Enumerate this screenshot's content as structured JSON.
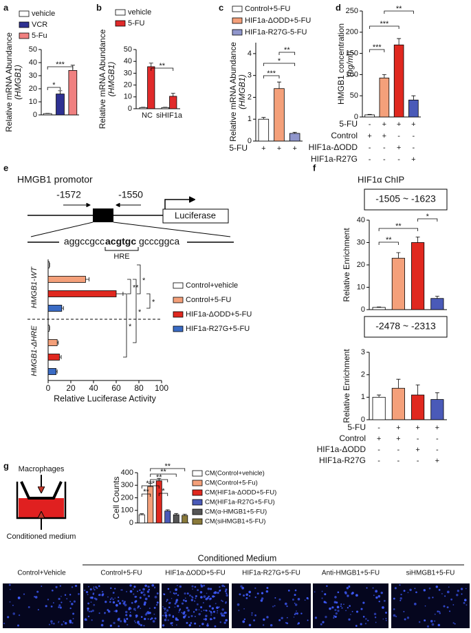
{
  "chart_data": [
    {
      "panel": "a",
      "type": "bar",
      "ylabel": [
        "Relative mRNA Abundance",
        "(HMGB1)"
      ],
      "categories": [
        null,
        null,
        null
      ],
      "series": [
        {
          "name": "vehicle",
          "color": "#ffffff",
          "values": [
            1,
            null,
            null
          ],
          "errors": [
            0.2,
            null,
            null
          ]
        },
        {
          "name": "VCR",
          "color": "#2e3192",
          "values": [
            null,
            16,
            null
          ],
          "errors": [
            null,
            2.5,
            null
          ]
        },
        {
          "name": "5-Fu",
          "color": "#f08080",
          "values": [
            null,
            null,
            34
          ],
          "errors": [
            null,
            null,
            4
          ]
        }
      ],
      "ylim": [
        0,
        50
      ],
      "yticks": [
        0,
        10,
        20,
        30,
        40,
        50
      ],
      "annotations": [
        "*",
        "***"
      ]
    },
    {
      "panel": "b",
      "type": "bar",
      "ylabel": [
        "Relative mRNA Abundance",
        "(HMGB1)"
      ],
      "categories": [
        "NC",
        "siHIF1a"
      ],
      "series": [
        {
          "name": "vehicle",
          "color": "#ffffff",
          "values": [
            1,
            1
          ],
          "errors": [
            0.2,
            0.2
          ]
        },
        {
          "name": "5-FU",
          "color": "#e02a2a",
          "values": [
            35.5,
            10.5
          ],
          "errors": [
            3,
            2.5
          ]
        }
      ],
      "ylim": [
        0,
        50
      ],
      "yticks": [
        0,
        10,
        20,
        30,
        40,
        50
      ],
      "annotations": [
        "**"
      ]
    },
    {
      "panel": "c",
      "type": "bar",
      "ylabel": [
        "Relative mRNA Abundance",
        "(HMGB1)"
      ],
      "categories": [
        null,
        null,
        null
      ],
      "series": [
        {
          "name": "Control+5-FU",
          "color": "#ffffff",
          "values": [
            1,
            null,
            null
          ],
          "errors": [
            0.08,
            null,
            null
          ]
        },
        {
          "name": "HIF1a-ΔODD+5-FU",
          "color": "#f4a07a",
          "values": [
            null,
            2.4,
            null
          ],
          "errors": [
            null,
            0.3,
            null
          ]
        },
        {
          "name": "HIF1a-R27G-5-FU",
          "color": "#9096cc",
          "values": [
            null,
            null,
            0.35
          ],
          "errors": [
            null,
            null,
            0.05
          ]
        }
      ],
      "ylim": [
        0,
        4.5
      ],
      "yticks": [
        0,
        1,
        2,
        3,
        4
      ],
      "annotations": [
        "***",
        "*",
        "**"
      ],
      "conditions": [
        {
          "label": "5-FU",
          "marks": [
            "+",
            "+",
            "+"
          ]
        }
      ]
    },
    {
      "panel": "d",
      "type": "bar",
      "ylabel": [
        "HMGB1 concentration",
        "(ng/ml)"
      ],
      "values": [
        5,
        92,
        170,
        40
      ],
      "errors": [
        1,
        8,
        15,
        10
      ],
      "colors": [
        "#ffffff",
        "#f4a07a",
        "#e0281f",
        "#4a5ab8"
      ],
      "ylim": [
        0,
        250
      ],
      "yticks": [
        0,
        50,
        100,
        150,
        200,
        250
      ],
      "annotations": [
        "***",
        "***",
        "**"
      ],
      "conditions": [
        {
          "label": "5-FU",
          "marks": [
            "-",
            "+",
            "+",
            "+"
          ]
        },
        {
          "label": "Control",
          "marks": [
            "+",
            "+",
            "-",
            "-"
          ]
        },
        {
          "label": "HIF1a-ΔODD",
          "marks": [
            "-",
            "-",
            "+",
            "-"
          ]
        },
        {
          "label": "HIF1a-R27G",
          "marks": [
            "-",
            "-",
            "-",
            "+"
          ]
        }
      ]
    },
    {
      "panel": "e",
      "type": "hbar",
      "title": "HMGB1 promotor",
      "diagram": {
        "positions": [
          "-1572",
          "-1550"
        ],
        "reporter": "Luciferase",
        "sequence": [
          "aggccgcc",
          "acgtgc",
          "gcccggca"
        ],
        "element": "HRE"
      },
      "categories": [
        "HMGB1-WT",
        "HMGB1-ΔHRE"
      ],
      "series": [
        {
          "name": "Control+vehicle",
          "color": "#ffffff",
          "values": [
            1,
            1
          ],
          "errors": [
            0.3,
            0.3
          ]
        },
        {
          "name": "Control+5-FU",
          "color": "#f4a07a",
          "values": [
            33,
            8
          ],
          "errors": [
            3,
            1
          ]
        },
        {
          "name": "HIF1a-ΔODD+5-FU",
          "color": "#e0281f",
          "values": [
            60,
            10
          ],
          "errors": [
            6,
            1.5
          ]
        },
        {
          "name": "HIF1a-R27G+5-FU",
          "color": "#3a6bc4",
          "values": [
            12,
            7
          ],
          "errors": [
            1.5,
            1
          ]
        }
      ],
      "xlim": [
        0,
        100
      ],
      "xticks": [
        0,
        20,
        40,
        60,
        80,
        100
      ],
      "xlabel": "Relative Luciferase Activity",
      "annotations": [
        "**",
        "*",
        "*",
        "*",
        "*"
      ]
    },
    {
      "panel": "f",
      "header": "HIF1α ChIP",
      "type": "bar",
      "title": "-1505 ~ -1623",
      "ylabel": [
        "Relative Enrichment"
      ],
      "values": [
        1,
        23,
        30,
        5
      ],
      "errors": [
        0.2,
        2.5,
        2.5,
        1
      ],
      "colors": [
        "#ffffff",
        "#f4a07a",
        "#e0281f",
        "#4a5ab8"
      ],
      "ylim": [
        0,
        40
      ],
      "yticks": [
        0,
        10,
        20,
        30,
        40
      ],
      "annotations": [
        "**",
        "**",
        "*"
      ]
    },
    {
      "type": "bar",
      "title": "-2478 ~ -2313",
      "ylabel": [
        "Relative Enrichment"
      ],
      "values": [
        1,
        1.4,
        1.1,
        0.9
      ],
      "errors": [
        0.1,
        0.4,
        0.45,
        0.3
      ],
      "colors": [
        "#ffffff",
        "#f4a07a",
        "#e0281f",
        "#4a5ab8"
      ],
      "ylim": [
        0,
        3
      ],
      "yticks": [
        0,
        1,
        2,
        3
      ],
      "conditions": [
        {
          "label": "5-FU",
          "marks": [
            "-",
            "+",
            "+",
            "+"
          ]
        },
        {
          "label": "Control",
          "marks": [
            "+",
            "+",
            "-",
            "-"
          ]
        },
        {
          "label": "HIF1a-ΔODD",
          "marks": [
            "-",
            "-",
            "+",
            "-"
          ]
        },
        {
          "label": "HIF1a-R27G",
          "marks": [
            "-",
            "-",
            "-",
            "+"
          ]
        }
      ]
    },
    {
      "panel": "g",
      "type": "bar",
      "ylabel": [
        "Cell Counts"
      ],
      "categories": [
        null,
        null,
        null,
        null,
        null,
        null
      ],
      "diagram": {
        "top": "Macrophages",
        "bottom": "Conditioned medium"
      },
      "series": [
        {
          "name": "CM(Control+vehicle)",
          "color": "#ffffff",
          "values": [
            65,
            null,
            null,
            null,
            null,
            null
          ],
          "errors": [
            8,
            null,
            null,
            null,
            null,
            null
          ]
        },
        {
          "name": "CM(Control+5-Fu)",
          "color": "#f4a07a",
          "values": [
            null,
            290,
            null,
            null,
            null,
            null
          ],
          "errors": [
            null,
            25,
            null,
            null,
            null,
            null
          ]
        },
        {
          "name": "CM(HIF1a-ΔODD+5-FU)",
          "color": "#e0281f",
          "values": [
            null,
            null,
            335,
            null,
            null,
            null
          ],
          "errors": [
            null,
            null,
            20,
            null,
            null,
            null
          ]
        },
        {
          "name": "CM(HIF1a-R27G+5-FU)",
          "color": "#4a5ab8",
          "values": [
            null,
            null,
            null,
            95,
            null,
            null
          ],
          "errors": [
            null,
            null,
            null,
            10,
            null,
            null
          ]
        },
        {
          "name": "CM(α-HMGB1+5-FU)",
          "color": "#555555",
          "values": [
            null,
            null,
            null,
            null,
            65,
            null
          ],
          "errors": [
            null,
            null,
            null,
            null,
            10,
            null
          ]
        },
        {
          "name": "CM(siHMGB1+5-FU)",
          "color": "#8a7a3a",
          "values": [
            null,
            null,
            null,
            null,
            null,
            60
          ],
          "errors": [
            null,
            null,
            null,
            null,
            null,
            10
          ]
        }
      ],
      "ylim": [
        0,
        400
      ],
      "yticks": [
        0,
        100,
        200,
        300,
        400
      ],
      "annotations": [
        "**",
        "***",
        "*",
        "**",
        "**",
        "**"
      ],
      "micrographs": {
        "title": "Conditioned Medium",
        "labels": [
          "Control+Vehicle",
          "Control+5-FU",
          "HIF1a-ΔODD+5-FU",
          "HIF1a-R27G+5-FU",
          "Anti-HMGB1+5-FU",
          "siHMGB1+5-FU"
        ]
      }
    }
  ]
}
